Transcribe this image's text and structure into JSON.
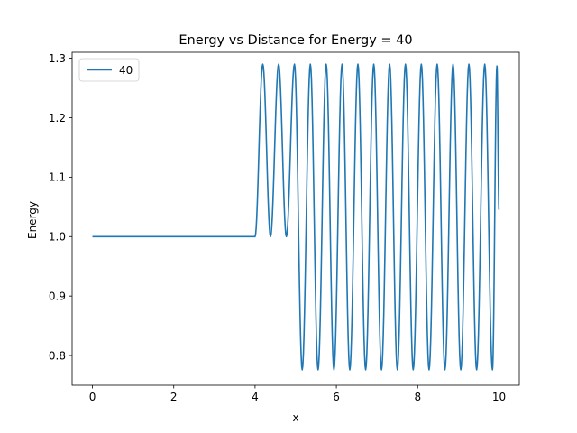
{
  "chart_data": {
    "type": "line",
    "title": "Energy vs Distance for Energy = 40",
    "xlabel": "x",
    "ylabel": "Energy",
    "xlim": [
      -0.5,
      10.5
    ],
    "ylim": [
      0.75,
      1.31
    ],
    "xticks": [
      0,
      2,
      4,
      6,
      8,
      10
    ],
    "yticks": [
      0.8,
      0.9,
      1.0,
      1.1,
      1.2,
      1.3
    ],
    "xtick_labels": [
      "0",
      "2",
      "4",
      "6",
      "8",
      "10"
    ],
    "ytick_labels": [
      "0.8",
      "0.9",
      "1.0",
      "1.1",
      "1.2",
      "1.3"
    ],
    "grid": false,
    "legend": {
      "position": "top-left",
      "entries": [
        "40"
      ]
    },
    "series": [
      {
        "name": "40",
        "color": "#1f77b4",
        "description": "y = 1.0 for x in [0, 4]; for x in (4, 10] oscillates with period ≈0.39; the first two crests reach 1.29 with troughs of 1.0, later troughs reach 0.776 and crests 1.29",
        "points": [
          [
            0.0,
            1.0
          ],
          [
            4.0,
            1.0
          ],
          [
            4.19,
            1.29
          ],
          [
            4.38,
            1.0
          ],
          [
            4.58,
            1.29
          ],
          [
            4.77,
            1.0
          ],
          [
            4.97,
            1.29
          ],
          [
            5.16,
            0.776
          ],
          [
            5.36,
            1.29
          ],
          [
            5.55,
            0.776
          ],
          [
            5.75,
            1.29
          ],
          [
            5.94,
            0.776
          ],
          [
            6.14,
            1.29
          ],
          [
            6.33,
            0.776
          ],
          [
            6.53,
            1.29
          ],
          [
            6.72,
            0.776
          ],
          [
            6.92,
            1.29
          ],
          [
            7.11,
            0.776
          ],
          [
            7.31,
            1.29
          ],
          [
            7.5,
            0.776
          ],
          [
            7.7,
            1.29
          ],
          [
            7.89,
            0.776
          ],
          [
            8.09,
            1.29
          ],
          [
            8.28,
            0.776
          ],
          [
            8.48,
            1.29
          ],
          [
            8.67,
            0.776
          ],
          [
            8.87,
            1.29
          ],
          [
            9.06,
            0.776
          ],
          [
            9.26,
            1.29
          ],
          [
            9.45,
            0.776
          ],
          [
            9.65,
            1.29
          ],
          [
            9.84,
            0.776
          ],
          [
            9.95,
            1.287
          ],
          [
            10.0,
            1.045
          ]
        ]
      }
    ]
  }
}
